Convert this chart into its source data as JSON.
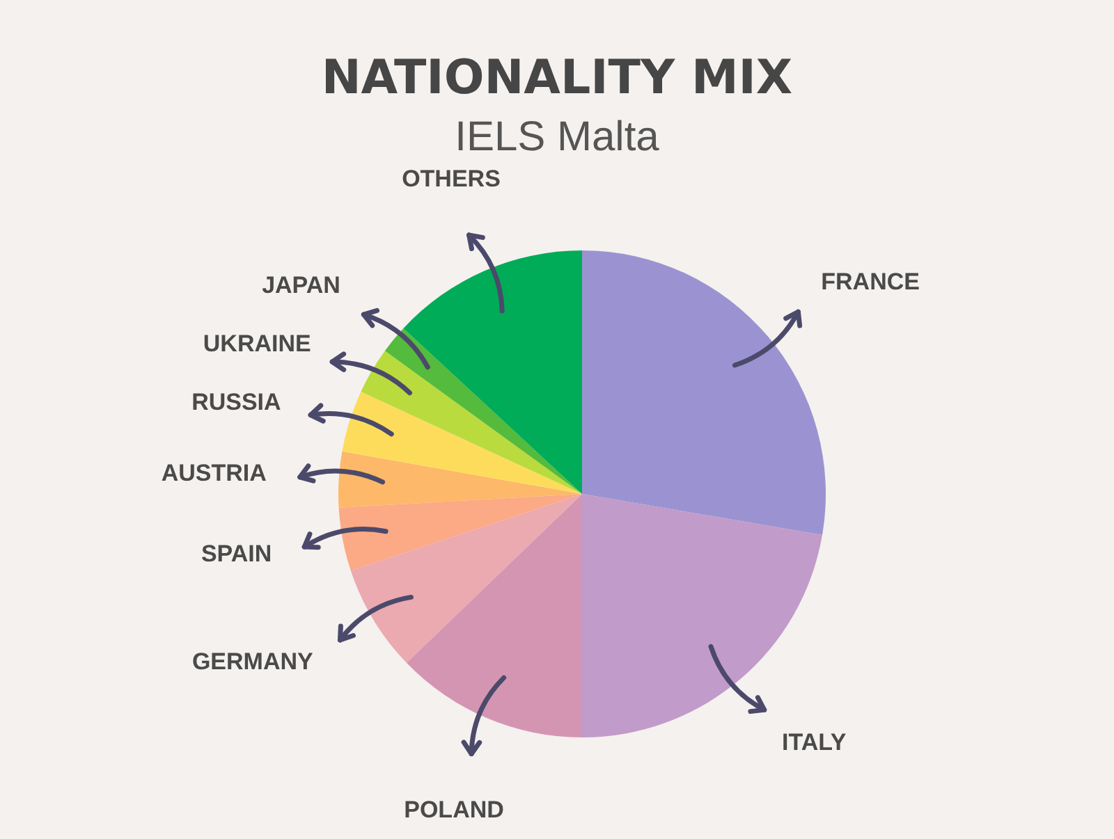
{
  "chart_data": {
    "type": "pie",
    "title": "NATIONALITY MIX",
    "subtitle": "IELS Malta",
    "categories": [
      "FRANCE",
      "ITALY",
      "POLAND",
      "GERMANY",
      "SPAIN",
      "AUSTRIA",
      "RUSSIA",
      "UKRAINE",
      "JAPAN",
      "OTHERS"
    ],
    "values": [
      27.7,
      22.3,
      12.8,
      7.1,
      4.2,
      3.7,
      4.1,
      3.1,
      1.9,
      13.1
    ],
    "colors": [
      "#9b93d1",
      "#c19bc9",
      "#d495b3",
      "#eba9b0",
      "#fbaa85",
      "#fdb86a",
      "#fddc5c",
      "#b9db3e",
      "#54bb3c",
      "#00ac58"
    ]
  }
}
